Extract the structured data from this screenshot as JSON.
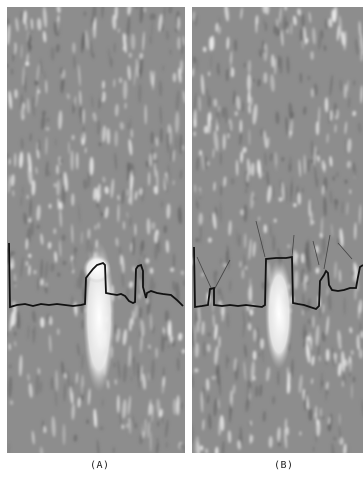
{
  "captions": {
    "a": "(A)",
    "b": "(B)"
  },
  "colors": {
    "page_background": "#ffffff",
    "ultrasound_base": "#8d8d8d",
    "speckle_light": "#f2f2f2",
    "speckle_dark": "#5e5e5e",
    "boundary_trace": "#111111",
    "candidate_lines": "#444444",
    "caption_text": "#222222"
  }
}
